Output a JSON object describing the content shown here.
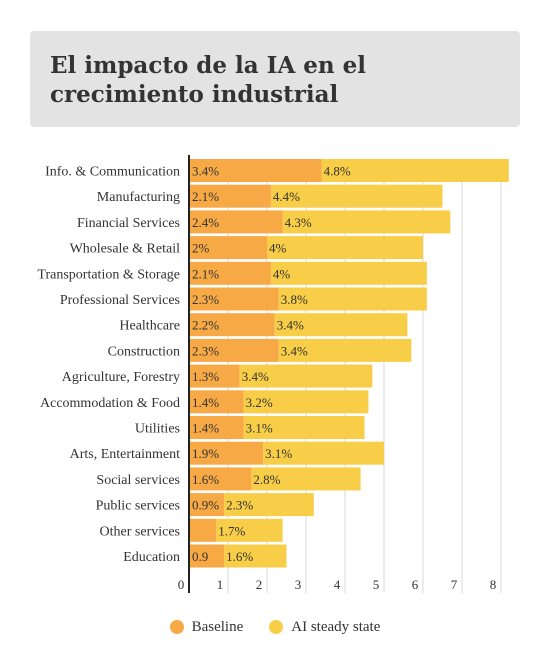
{
  "header": {
    "title": "El impacto de la IA en el crecimiento industrial"
  },
  "colors": {
    "baseline": "#f7a946",
    "ai": "#f8cd47",
    "axis": "#222222",
    "grid": "#d9d9d9",
    "text": "#333333"
  },
  "chart_data": {
    "type": "bar",
    "orientation": "horizontal",
    "stacked": true,
    "title": "El impacto de la IA en el crecimiento industrial",
    "categories": [
      "Info. & Communication",
      "Manufacturing",
      "Financial Services",
      "Wholesale & Retail",
      "Transportation & Storage",
      "Professional Services",
      "Healthcare",
      "Construction",
      "Agriculture, Forestry",
      "Accommodation & Food",
      "Utilities",
      "Arts, Entertainment",
      "Social services",
      "Public services",
      "Other services",
      "Education"
    ],
    "series": [
      {
        "name": "Baseline",
        "color": "#f7a946",
        "values": [
          3.4,
          2.1,
          2.4,
          2.0,
          2.1,
          2.3,
          2.2,
          2.3,
          1.3,
          1.4,
          1.4,
          1.9,
          1.6,
          0.9,
          0.7,
          0.9
        ],
        "labels": [
          "3.4%",
          "2.1%",
          "2.4%",
          "2%",
          "2.1%",
          "2.3%",
          "2.2%",
          "2.3%",
          "1.3%",
          "1.4%",
          "1.4%",
          "1.9%",
          "1.6%",
          "0.9%",
          "",
          "0.9"
        ]
      },
      {
        "name": "AI steady state",
        "color": "#f8cd47",
        "values": [
          4.8,
          4.4,
          4.3,
          4.0,
          4.0,
          3.8,
          3.4,
          3.4,
          3.4,
          3.2,
          3.1,
          3.1,
          2.8,
          2.3,
          1.7,
          1.6
        ],
        "labels": [
          "4.8%",
          "4.4%",
          "4.3%",
          "4%",
          "4%",
          "3.8%",
          "3.4%",
          "3.4%",
          "3.4%",
          "3.2%",
          "3.1%",
          "3.1%",
          "2.8%",
          "2.3%",
          "1.7%",
          "1.6%"
        ]
      }
    ],
    "xticks": [
      "0",
      "1",
      "2",
      "3",
      "4",
      "5",
      "6",
      "7",
      "8"
    ],
    "xlim": [
      0,
      8.3
    ],
    "grid": true,
    "legend": "bottom"
  }
}
